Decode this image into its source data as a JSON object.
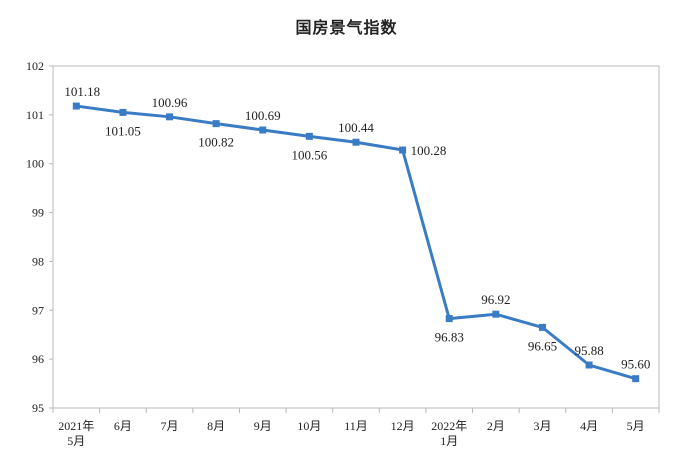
{
  "chart_data": {
    "type": "line",
    "title": "国房景气指数",
    "categories": [
      "2021年\n5月",
      "6月",
      "7月",
      "8月",
      "9月",
      "10月",
      "11月",
      "12月",
      "2022年\n1月",
      "2月",
      "3月",
      "4月",
      "5月"
    ],
    "series": [
      {
        "values": [
          101.18,
          101.05,
          100.96,
          100.82,
          100.69,
          100.56,
          100.44,
          100.28,
          96.83,
          96.92,
          96.65,
          95.88,
          95.6
        ]
      }
    ],
    "data_labels": [
      "101.18",
      "101.05",
      "100.96",
      "100.82",
      "100.69",
      "100.56",
      "100.44",
      "100.28",
      "96.83",
      "96.92",
      "96.65",
      "95.88",
      "95.60"
    ],
    "y_ticks": [
      95,
      96,
      97,
      98,
      99,
      100,
      101,
      102
    ],
    "ylim": [
      95,
      102
    ],
    "grid": false,
    "line_color": "#3a7cc4"
  }
}
